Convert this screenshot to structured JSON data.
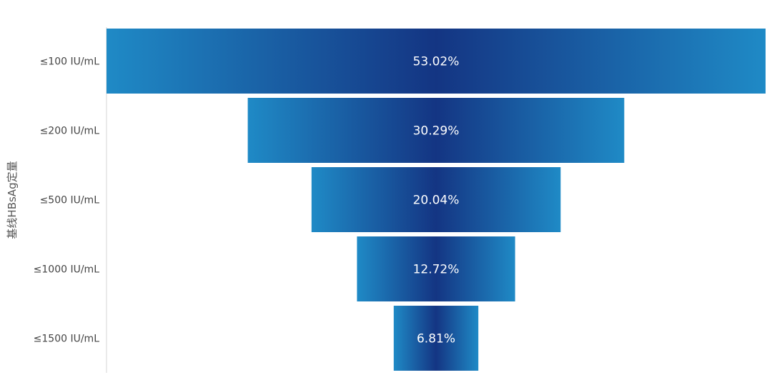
{
  "chart_data": {
    "type": "bar",
    "chart_style": "funnel",
    "title": "",
    "ylabel": "基线HBsAg定量",
    "xlabel": "",
    "categories": [
      "≤100 IU/mL",
      "≤200 IU/mL",
      "≤500 IU/mL",
      "≤1000 IU/mL",
      "≤1500 IU/mL"
    ],
    "values": [
      53.02,
      30.29,
      20.04,
      12.72,
      6.81
    ],
    "labels": [
      "53.02%",
      "30.29%",
      "20.04%",
      "12.72%",
      "6.81%"
    ],
    "value_unit": "%",
    "legend": "none",
    "grid": false,
    "colors": {
      "bar_edge": "#1f8ac6",
      "bar_center": "#143583",
      "label_text": "#ffffff",
      "category_text": "#444444",
      "axis_title_text": "#555555",
      "axis_line": "#d6d6d6"
    }
  }
}
